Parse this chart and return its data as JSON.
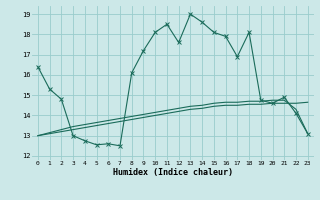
{
  "xlabel": "Humidex (Indice chaleur)",
  "x_ticks": [
    0,
    1,
    2,
    3,
    4,
    5,
    6,
    7,
    8,
    9,
    10,
    11,
    12,
    13,
    14,
    15,
    16,
    17,
    18,
    19,
    20,
    21,
    22,
    23
  ],
  "ylim": [
    11.8,
    19.4
  ],
  "yticks": [
    12,
    13,
    14,
    15,
    16,
    17,
    18,
    19
  ],
  "bg_color": "#cce8e8",
  "grid_color": "#99cccc",
  "line_color": "#1a6b5a",
  "series1_y": [
    16.4,
    15.3,
    14.8,
    13.0,
    12.75,
    12.55,
    12.6,
    12.5,
    16.1,
    17.2,
    18.1,
    18.5,
    17.6,
    19.0,
    18.6,
    18.1,
    17.9,
    16.9,
    18.1,
    14.75,
    14.6,
    14.9,
    14.1,
    13.1
  ],
  "series2_y": [
    13.0,
    13.15,
    13.3,
    13.45,
    13.55,
    13.65,
    13.75,
    13.85,
    13.95,
    14.05,
    14.15,
    14.25,
    14.35,
    14.45,
    14.5,
    14.6,
    14.65,
    14.65,
    14.7,
    14.7,
    14.75,
    14.75,
    14.3,
    13.1
  ],
  "series3_y": [
    13.0,
    13.1,
    13.2,
    13.3,
    13.4,
    13.5,
    13.6,
    13.7,
    13.8,
    13.9,
    14.0,
    14.1,
    14.2,
    14.3,
    14.35,
    14.45,
    14.5,
    14.5,
    14.55,
    14.55,
    14.6,
    14.6,
    14.6,
    14.65
  ]
}
